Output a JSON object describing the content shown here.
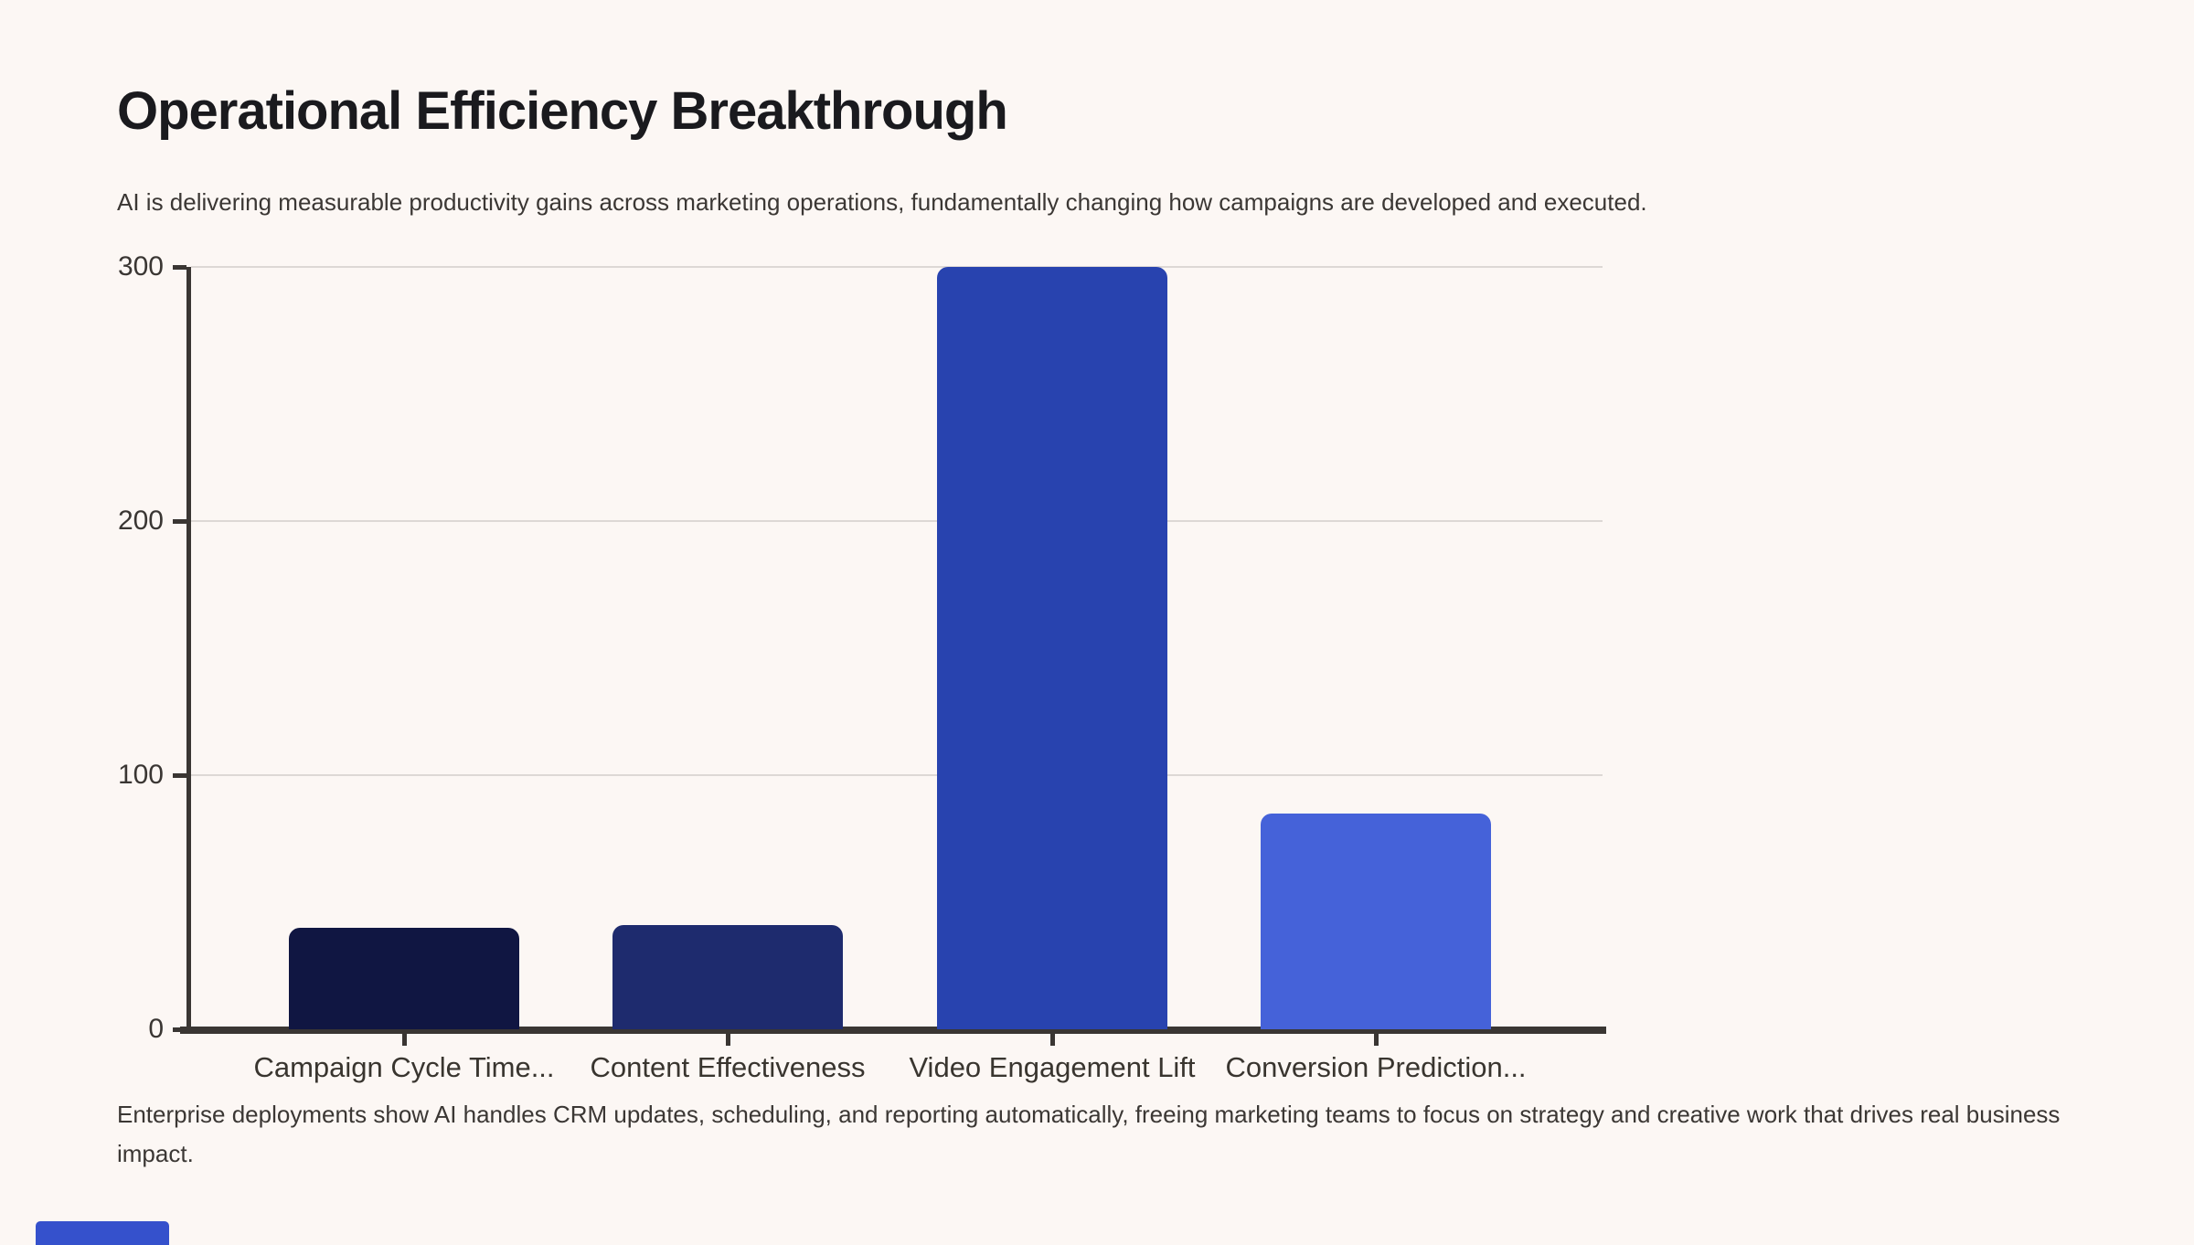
{
  "header": {
    "title": "Operational Efficiency Breakthrough",
    "subtitle": "AI is delivering measurable productivity gains across marketing operations, fundamentally changing how campaigns are developed and executed."
  },
  "chart_data": {
    "type": "bar",
    "categories": [
      "Campaign Cycle Time...",
      "Content Effectiveness",
      "Video Engagement Lift",
      "Conversion Prediction..."
    ],
    "values": [
      40,
      41,
      300,
      85
    ],
    "bar_colors": [
      "#101642",
      "#1e2b6e",
      "#2843af",
      "#4562d9"
    ],
    "title": "",
    "xlabel": "",
    "ylabel": "",
    "ylim": [
      0,
      300
    ],
    "yticks": [
      0,
      100,
      200,
      300
    ],
    "grid": true,
    "legend": false
  },
  "footer": {
    "caption": "Enterprise deployments show AI handles CRM updates, scheduling, and reporting automatically, freeing marketing teams to focus on strategy and creative work that drives real business impact."
  },
  "colors": {
    "background": "#fcf7f4",
    "axis": "#3a3633",
    "gridline": "#ddd8d5",
    "title_text": "#1a1a1e",
    "body_text": "#3b3734",
    "accent_strip": "#3551cc"
  }
}
